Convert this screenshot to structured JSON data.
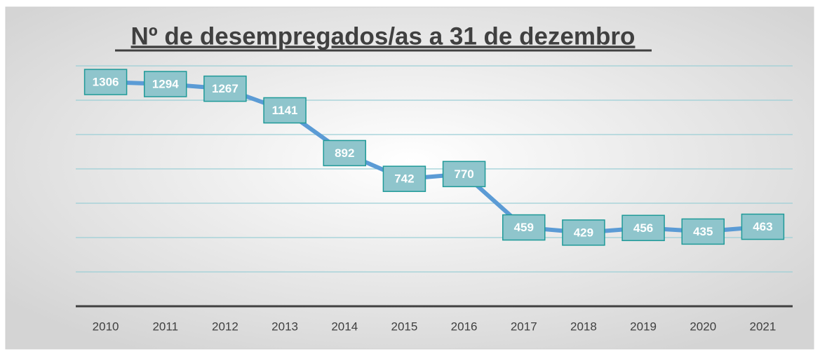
{
  "chart_data": {
    "type": "line",
    "title": "Nº de desempregados/as a 31 de dezembro",
    "categories": [
      "2010",
      "2011",
      "2012",
      "2013",
      "2014",
      "2015",
      "2016",
      "2017",
      "2018",
      "2019",
      "2020",
      "2021"
    ],
    "values": [
      1306,
      1294,
      1267,
      1141,
      892,
      742,
      770,
      459,
      429,
      456,
      435,
      463
    ],
    "color": "#5b9bd5",
    "ylim": [
      0,
      1400
    ],
    "yticks": [
      0,
      200,
      400,
      600,
      800,
      1000,
      1200,
      1400
    ],
    "grid": true
  }
}
